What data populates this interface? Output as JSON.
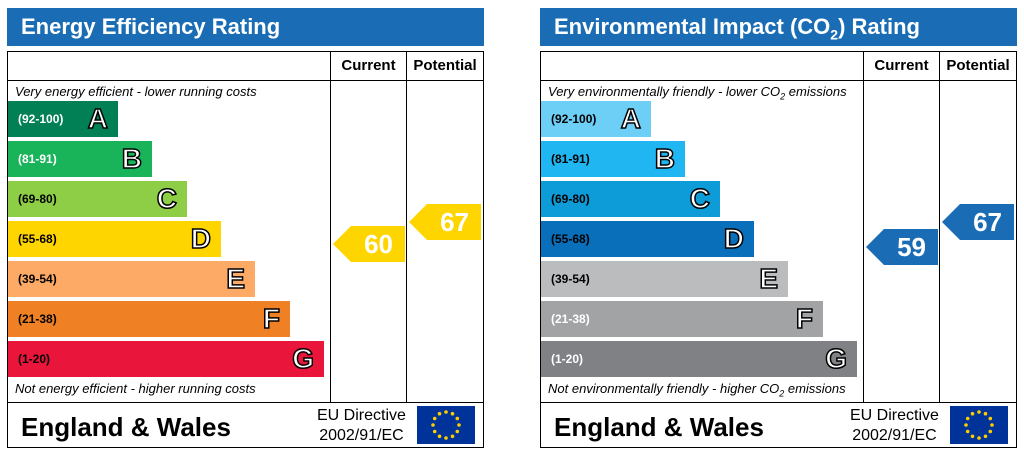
{
  "chart_data": [
    {
      "type": "bar",
      "title": "Energy Efficiency Rating",
      "columns": [
        "Current",
        "Potential"
      ],
      "top_note": "Very energy efficient - lower running costs",
      "bottom_note": "Not energy efficient - higher running costs",
      "bands": [
        {
          "range": "(92-100)",
          "letter": "A",
          "color": "#008054",
          "range_color": "#ffffff"
        },
        {
          "range": "(81-91)",
          "letter": "B",
          "color": "#19b459",
          "range_color": "#ffffff"
        },
        {
          "range": "(69-80)",
          "letter": "C",
          "color": "#8dce46",
          "range_color": "#000000"
        },
        {
          "range": "(55-68)",
          "letter": "D",
          "color": "#ffd500",
          "range_color": "#000000"
        },
        {
          "range": "(39-54)",
          "letter": "E",
          "color": "#fcaa65",
          "range_color": "#000000"
        },
        {
          "range": "(21-38)",
          "letter": "F",
          "color": "#ef8023",
          "range_color": "#000000"
        },
        {
          "range": "(1-20)",
          "letter": "G",
          "color": "#e9153b",
          "range_color": "#000000"
        }
      ],
      "current": {
        "value": 60,
        "band": "D",
        "color": "#ffd500"
      },
      "potential": {
        "value": 67,
        "band": "D",
        "color": "#ffd500"
      },
      "footer": {
        "region": "England & Wales",
        "directive_line1": "EU Directive",
        "directive_line2": "2002/91/EC"
      }
    },
    {
      "type": "bar",
      "title": "Environmental Impact (CO",
      "title_sub": "2",
      "title_end": ") Rating",
      "columns": [
        "Current",
        "Potential"
      ],
      "top_note": "Very environmentally friendly - lower CO",
      "top_note_sub": "2",
      "top_note_end": " emissions",
      "bottom_note": "Not environmentally friendly - higher CO",
      "bottom_note_sub": "2",
      "bottom_note_end": " emissions",
      "bands": [
        {
          "range": "(92-100)",
          "letter": "A",
          "color": "#6ecff6",
          "range_color": "#000000"
        },
        {
          "range": "(81-91)",
          "letter": "B",
          "color": "#1fb6f1",
          "range_color": "#000000"
        },
        {
          "range": "(69-80)",
          "letter": "C",
          "color": "#0d9cd8",
          "range_color": "#000000"
        },
        {
          "range": "(55-68)",
          "letter": "D",
          "color": "#0a6fbb",
          "range_color": "#000000"
        },
        {
          "range": "(39-54)",
          "letter": "E",
          "color": "#bbbcbe",
          "range_color": "#000000"
        },
        {
          "range": "(21-38)",
          "letter": "F",
          "color": "#a2a3a5",
          "range_color": "#ffffff"
        },
        {
          "range": "(1-20)",
          "letter": "G",
          "color": "#808184",
          "range_color": "#ffffff"
        }
      ],
      "current": {
        "value": 59,
        "band": "D",
        "color": "#1a6db5"
      },
      "potential": {
        "value": 67,
        "band": "D",
        "color": "#1a6db5"
      },
      "footer": {
        "region": "England & Wales",
        "directive_line1": "EU Directive",
        "directive_line2": "2002/91/EC"
      }
    }
  ]
}
